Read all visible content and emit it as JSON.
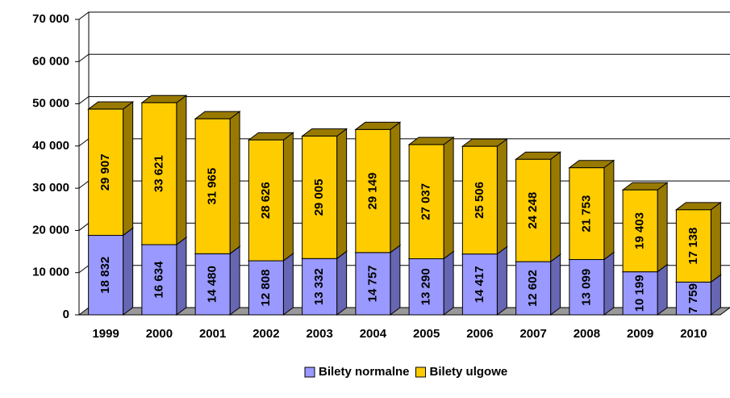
{
  "chart_data": {
    "type": "bar3d_stacked",
    "categories": [
      "1999",
      "2000",
      "2001",
      "2002",
      "2003",
      "2004",
      "2005",
      "2006",
      "2007",
      "2008",
      "2009",
      "2010"
    ],
    "series": [
      {
        "name": "Bilety normalne",
        "color": "#9999ff",
        "side": "#6666b3",
        "values": [
          18832,
          16634,
          14480,
          12808,
          13332,
          14757,
          13290,
          14417,
          12602,
          13099,
          10199,
          7759
        ],
        "value_labels": [
          "18 832",
          "16 634",
          "14 480",
          "12 808",
          "13 332",
          "14 757",
          "13 290",
          "14 417",
          "12 602",
          "13 099",
          "10 199",
          "7 759"
        ]
      },
      {
        "name": "Bilety ulgowe",
        "color": "#ffcc00",
        "side": "#997a00",
        "values": [
          29907,
          33621,
          31965,
          28626,
          29005,
          29149,
          27037,
          25506,
          24248,
          21753,
          19403,
          17138
        ],
        "value_labels": [
          "29 907",
          "33 621",
          "31 965",
          "28 626",
          "29 005",
          "29 149",
          "27 037",
          "25 506",
          "24 248",
          "21 753",
          "19 403",
          "17 138"
        ]
      }
    ],
    "ylim": [
      0,
      70000
    ],
    "yticks": [
      {
        "value": 0,
        "label": "0"
      },
      {
        "value": 10000,
        "label": "10 000"
      },
      {
        "value": 20000,
        "label": "20 000"
      },
      {
        "value": 30000,
        "label": "30 000"
      },
      {
        "value": 40000,
        "label": "40 000"
      },
      {
        "value": 50000,
        "label": "50 000"
      },
      {
        "value": 60000,
        "label": "60 000"
      },
      {
        "value": 70000,
        "label": "70 000"
      }
    ],
    "grid": true,
    "legend": "bottom"
  }
}
